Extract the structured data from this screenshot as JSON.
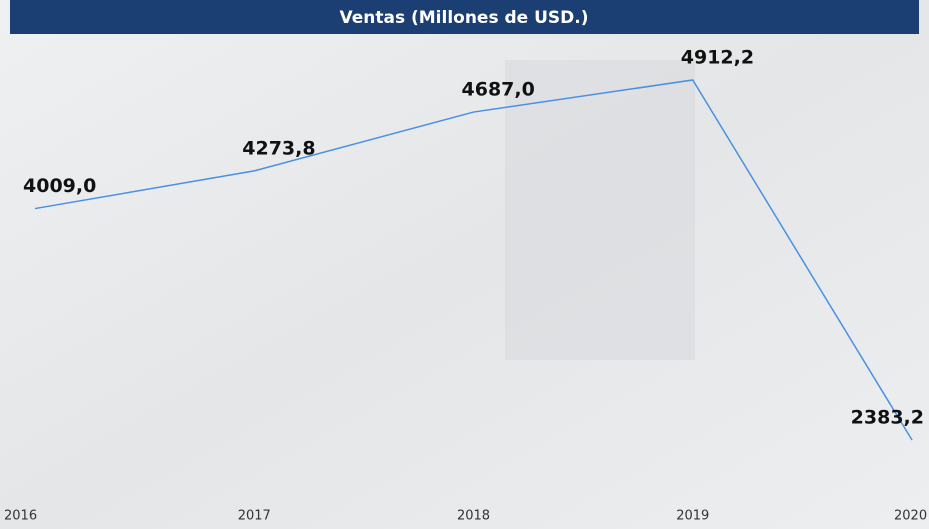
{
  "chart_data": {
    "type": "line",
    "title": "Ventas (Millones de USD.)",
    "categories": [
      "2016",
      "2017",
      "2018",
      "2019",
      "2020"
    ],
    "series": [
      {
        "color": "#4a90e2",
        "values": [
          4009.0,
          4273.8,
          4687.0,
          4912.2,
          2383.2
        ],
        "value_labels": [
          "4009,0",
          "4273,8",
          "4687,0",
          "4912,2",
          "2383,2"
        ]
      }
    ]
  }
}
